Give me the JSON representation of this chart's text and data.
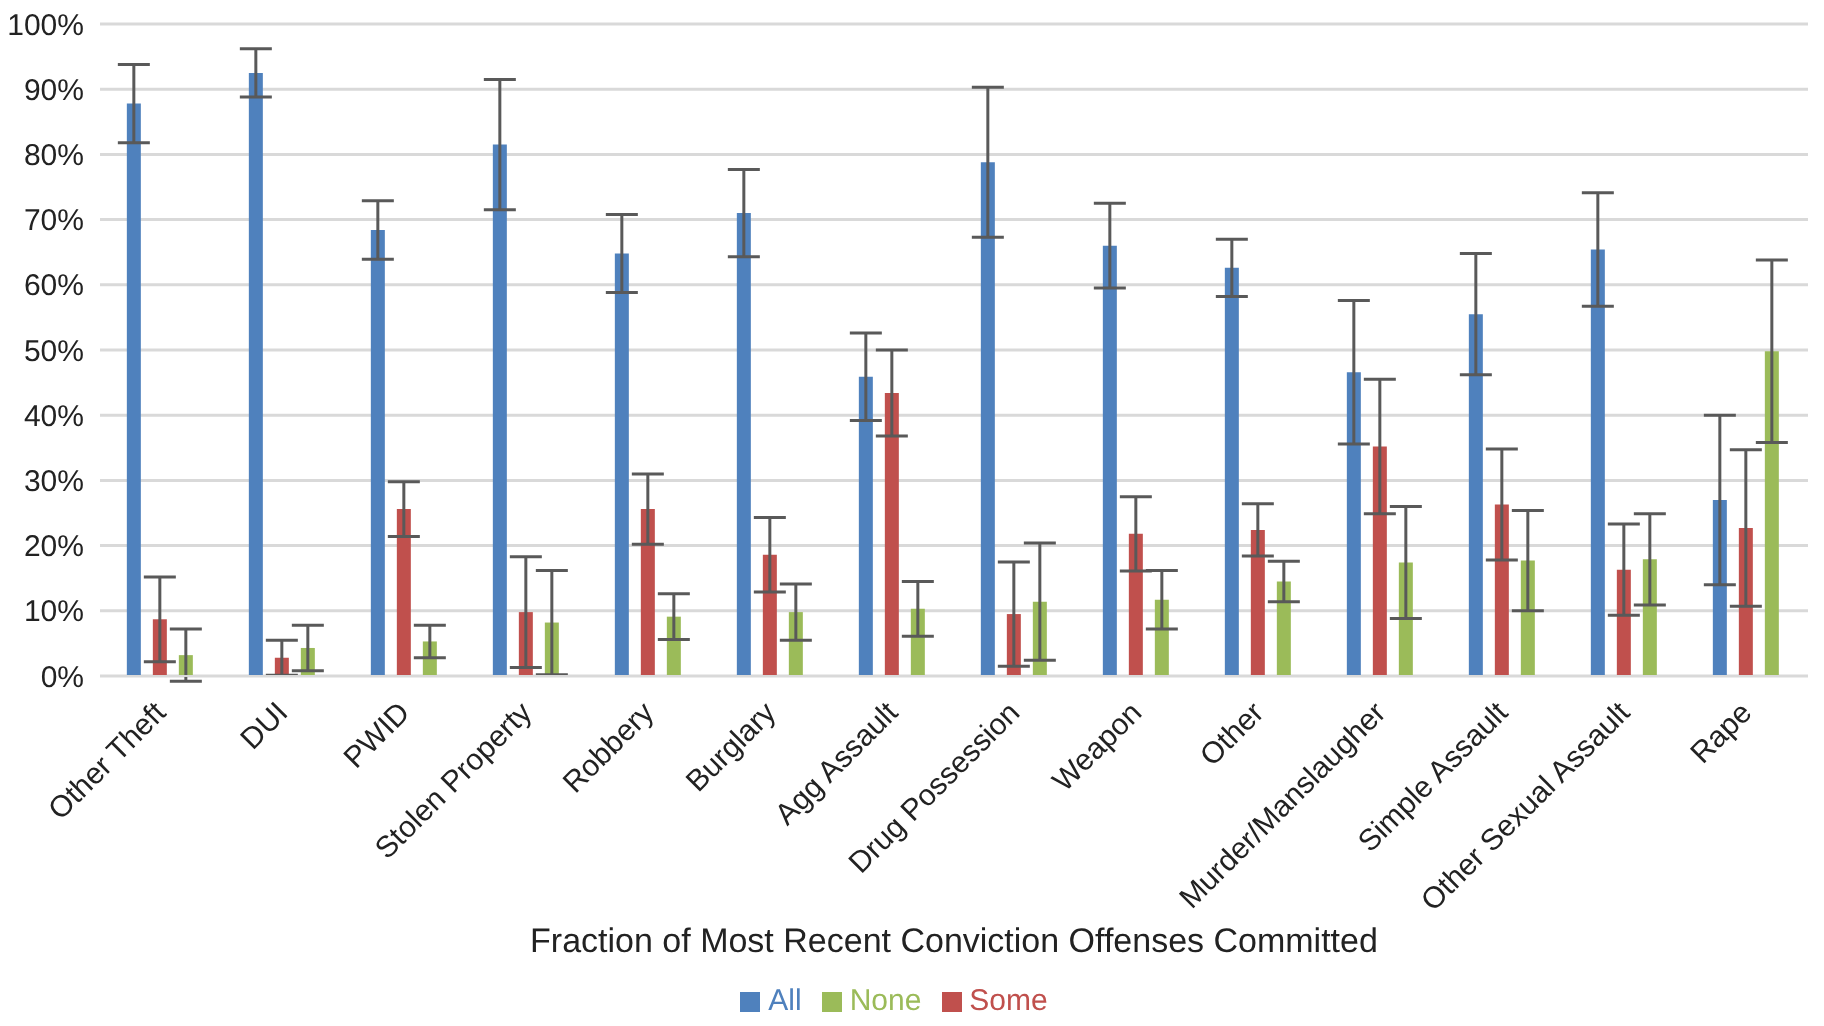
{
  "chart_data": {
    "type": "bar",
    "xlabel": "Fraction of Most Recent Conviction Offenses Committed",
    "categories": [
      "Other Theft",
      "DUI",
      "PWID",
      "Stolen Property",
      "Robbery",
      "Burglary",
      "Agg Assault",
      "Drug Possession",
      "Weapon",
      "Other",
      "Murder/Manslaugher",
      "Simple Assault",
      "Other Sexual Assault",
      "Rape"
    ],
    "series": [
      {
        "name": "All",
        "color": "#4f81bd",
        "values": [
          87.8,
          92.5,
          68.4,
          81.5,
          64.8,
          71,
          45.9,
          78.8,
          66,
          62.6,
          46.6,
          55.5,
          65.4,
          27
        ],
        "errors": [
          6,
          3.7,
          4.5,
          10,
          6,
          6.7,
          6.7,
          11.5,
          6.5,
          4.4,
          11,
          9.3,
          8.7,
          13
        ]
      },
      {
        "name": "Some",
        "color": "#c0504d",
        "values": [
          8.7,
          2.8,
          25.6,
          9.8,
          25.6,
          18.6,
          43.4,
          9.5,
          21.8,
          22.4,
          35.2,
          26.3,
          16.3,
          22.7
        ],
        "errors": [
          6.5,
          2.7,
          4.2,
          8.5,
          5.4,
          5.7,
          6.6,
          8,
          5.7,
          4,
          10.3,
          8.5,
          7,
          12
        ]
      },
      {
        "name": "None",
        "color": "#9bbb59",
        "values": [
          3.2,
          4.3,
          5.3,
          8.2,
          9.1,
          9.8,
          10.3,
          11.4,
          11.7,
          14.5,
          17.4,
          17.7,
          17.9,
          49.8
        ],
        "errors": [
          4,
          3.5,
          2.5,
          8,
          3.5,
          4.3,
          4.2,
          9,
          4.5,
          3.1,
          8.6,
          7.7,
          7,
          14
        ]
      }
    ],
    "ylim": [
      0,
      100
    ],
    "yticks": [
      {
        "value": 0,
        "label": "0%"
      },
      {
        "value": 10,
        "label": "10%"
      },
      {
        "value": 20,
        "label": "20%"
      },
      {
        "value": 30,
        "label": "30%"
      },
      {
        "value": 40,
        "label": "40%"
      },
      {
        "value": 50,
        "label": "50%"
      },
      {
        "value": 60,
        "label": "60%"
      },
      {
        "value": 70,
        "label": "70%"
      },
      {
        "value": 80,
        "label": "80%"
      },
      {
        "value": 90,
        "label": "90%"
      },
      {
        "value": 100,
        "label": "100%"
      }
    ],
    "grid": "y",
    "legend": "bottom"
  }
}
